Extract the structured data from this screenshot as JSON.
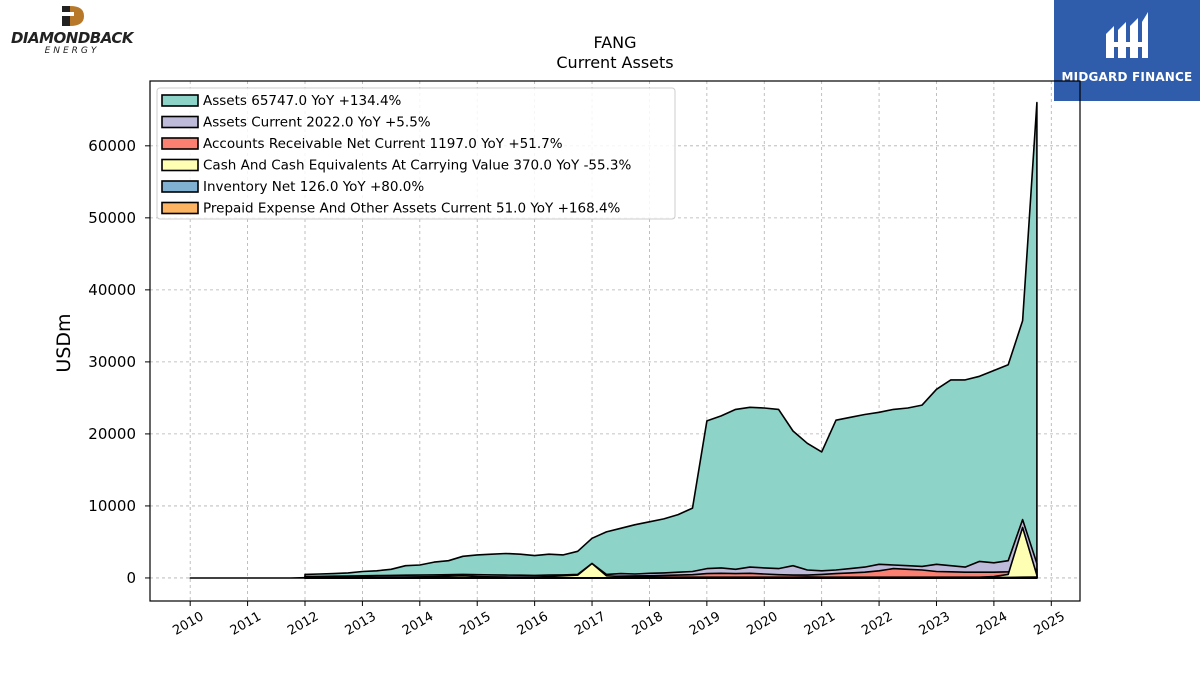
{
  "brand_left": {
    "name": "DIAMONDBACK",
    "sub": "ENERGY"
  },
  "brand_right": {
    "name": "MIDGARD FINANCE"
  },
  "chart_data": {
    "type": "area",
    "title": "FANG",
    "subtitle": "Current  Assets",
    "ylabel": "USDm",
    "xlabel": "",
    "xlim": [
      2009.3,
      2025.5
    ],
    "ylim": [
      -3200,
      69000
    ],
    "grid": true,
    "legend_position": "top-left",
    "x_ticks": [
      "2010",
      "2011",
      "2012",
      "2013",
      "2014",
      "2015",
      "2016",
      "2017",
      "2018",
      "2019",
      "2020",
      "2021",
      "2022",
      "2023",
      "2024",
      "2025"
    ],
    "y_ticks": [
      0,
      10000,
      20000,
      30000,
      40000,
      50000,
      60000
    ],
    "series": [
      {
        "name": "Assets",
        "legend": "Assets  65747.0 YoY +134.4%",
        "color": "#8dd3c7",
        "x": [
          2012.0,
          2012.25,
          2012.5,
          2012.75,
          2013.0,
          2013.25,
          2013.5,
          2013.75,
          2014.0,
          2014.25,
          2014.5,
          2014.75,
          2015.0,
          2015.25,
          2015.5,
          2015.75,
          2016.0,
          2016.25,
          2016.5,
          2016.75,
          2017.0,
          2017.25,
          2017.5,
          2017.75,
          2018.0,
          2018.25,
          2018.5,
          2018.75,
          2019.0,
          2019.25,
          2019.5,
          2019.75,
          2020.0,
          2020.25,
          2020.5,
          2020.75,
          2021.0,
          2021.25,
          2021.5,
          2021.75,
          2022.0,
          2022.25,
          2022.5,
          2022.75,
          2023.0,
          2023.25,
          2023.5,
          2023.75,
          2024.0,
          2024.25,
          2024.5,
          2024.75
        ],
        "values": [
          500,
          550,
          600,
          700,
          900,
          1000,
          1200,
          1700,
          1800,
          2200,
          2400,
          3000,
          3200,
          3300,
          3400,
          3300,
          3100,
          3300,
          3200,
          3700,
          5500,
          6400,
          6900,
          7400,
          7800,
          8200,
          8800,
          9700,
          21800,
          22500,
          23400,
          23700,
          23600,
          23400,
          20400,
          18700,
          17500,
          21900,
          22300,
          22700,
          23000,
          23400,
          23600,
          24000,
          26200,
          27500,
          27500,
          28000,
          28800,
          29600,
          35700,
          66000
        ]
      },
      {
        "name": "Assets Current",
        "legend": "Assets Current  2022.0 YoY +5.5%",
        "color": "#bebada",
        "x": [
          2012.0,
          2012.25,
          2012.5,
          2012.75,
          2013.0,
          2013.25,
          2013.5,
          2013.75,
          2014.0,
          2014.25,
          2014.5,
          2014.75,
          2015.0,
          2015.25,
          2015.5,
          2015.75,
          2016.0,
          2016.25,
          2016.5,
          2016.75,
          2017.0,
          2017.25,
          2017.5,
          2017.75,
          2018.0,
          2018.25,
          2018.5,
          2018.75,
          2019.0,
          2019.25,
          2019.5,
          2019.75,
          2020.0,
          2020.25,
          2020.5,
          2020.75,
          2021.0,
          2021.25,
          2021.5,
          2021.75,
          2022.0,
          2022.25,
          2022.5,
          2022.75,
          2023.0,
          2023.25,
          2023.5,
          2023.75,
          2024.0,
          2024.25,
          2024.5,
          2024.75
        ],
        "values": [
          200,
          220,
          240,
          260,
          300,
          320,
          350,
          380,
          400,
          420,
          450,
          500,
          450,
          420,
          400,
          380,
          350,
          400,
          420,
          500,
          2000,
          500,
          600,
          550,
          650,
          700,
          800,
          900,
          1300,
          1400,
          1200,
          1500,
          1400,
          1300,
          1700,
          1100,
          1000,
          1100,
          1300,
          1500,
          1900,
          1800,
          1700,
          1600,
          1900,
          1700,
          1500,
          2300,
          2100,
          2400,
          8100,
          2000
        ]
      },
      {
        "name": "Accounts Receivable Net Current",
        "legend": "Accounts Receivable Net Current  1197.0 YoY +51.7%",
        "color": "#fb8072",
        "x": [
          2012.0,
          2012.25,
          2012.5,
          2012.75,
          2013.0,
          2013.25,
          2013.5,
          2013.75,
          2014.0,
          2014.25,
          2014.5,
          2014.75,
          2015.0,
          2015.25,
          2015.5,
          2015.75,
          2016.0,
          2016.25,
          2016.5,
          2016.75,
          2017.0,
          2017.25,
          2017.5,
          2017.75,
          2018.0,
          2018.25,
          2018.5,
          2018.75,
          2019.0,
          2019.25,
          2019.5,
          2019.75,
          2020.0,
          2020.25,
          2020.5,
          2020.75,
          2021.0,
          2021.25,
          2021.5,
          2021.75,
          2022.0,
          2022.25,
          2022.5,
          2022.75,
          2023.0,
          2023.25,
          2023.5,
          2023.75,
          2024.0,
          2024.25,
          2024.5,
          2024.75
        ],
        "values": [
          50,
          55,
          60,
          65,
          80,
          90,
          100,
          110,
          120,
          130,
          140,
          150,
          130,
          120,
          110,
          100,
          100,
          110,
          120,
          150,
          200,
          220,
          250,
          280,
          300,
          350,
          400,
          450,
          600,
          650,
          600,
          650,
          550,
          450,
          400,
          400,
          500,
          600,
          700,
          800,
          1000,
          1300,
          1200,
          1100,
          900,
          850,
          800,
          800,
          800,
          850,
          1000,
          1197
        ]
      },
      {
        "name": "Cash And Cash Equivalents At Carrying Value",
        "legend": "Cash And Cash Equivalents At Carrying Value  370.0 YoY -55.3%",
        "color": "#ffffb3",
        "x": [
          2010.0,
          2010.25,
          2010.5,
          2010.75,
          2011.0,
          2011.25,
          2011.5,
          2011.75,
          2012.0,
          2012.25,
          2012.5,
          2012.75,
          2013.0,
          2013.25,
          2013.5,
          2013.75,
          2014.0,
          2014.25,
          2014.5,
          2014.75,
          2015.0,
          2015.25,
          2015.5,
          2015.75,
          2016.0,
          2016.25,
          2016.5,
          2016.75,
          2017.0,
          2017.25,
          2017.5,
          2017.75,
          2018.0,
          2018.25,
          2018.5,
          2018.75,
          2019.0,
          2019.25,
          2019.5,
          2019.75,
          2020.0,
          2020.25,
          2020.5,
          2020.75,
          2021.0,
          2021.25,
          2021.5,
          2021.75,
          2022.0,
          2022.25,
          2022.5,
          2022.75,
          2023.0,
          2023.25,
          2023.5,
          2023.75,
          2024.0,
          2024.25,
          2024.5,
          2024.75
        ],
        "values": [
          0,
          0,
          0,
          0,
          0,
          0,
          0,
          0,
          40,
          50,
          60,
          70,
          80,
          90,
          100,
          120,
          150,
          200,
          250,
          300,
          200,
          150,
          120,
          100,
          100,
          200,
          300,
          400,
          2000,
          300,
          200,
          150,
          100,
          100,
          100,
          100,
          100,
          100,
          100,
          100,
          100,
          100,
          100,
          150,
          100,
          100,
          100,
          100,
          100,
          100,
          100,
          100,
          100,
          100,
          100,
          100,
          200,
          500,
          7000,
          370
        ]
      },
      {
        "name": "Inventory Net",
        "legend": "Inventory Net  126.0 YoY +80.0%",
        "color": "#80b1d3",
        "x": [
          2012.0,
          2012.25,
          2012.5,
          2012.75,
          2013.0,
          2013.25,
          2013.5,
          2013.75,
          2014.0,
          2014.25,
          2014.5,
          2014.75,
          2015.0,
          2015.25,
          2015.5,
          2015.75,
          2016.0,
          2016.25,
          2016.5,
          2016.75,
          2017.0,
          2017.25,
          2017.5,
          2017.75,
          2018.0,
          2018.25,
          2018.5,
          2018.75,
          2019.0,
          2019.25,
          2019.5,
          2019.75,
          2020.0,
          2020.25,
          2020.5,
          2020.75,
          2021.0,
          2021.25,
          2021.5,
          2021.75,
          2022.0,
          2022.25,
          2022.5,
          2022.75,
          2023.0,
          2023.25,
          2023.5,
          2023.75,
          2024.0,
          2024.25,
          2024.5,
          2024.75
        ],
        "values": [
          5,
          5,
          5,
          5,
          8,
          8,
          8,
          8,
          10,
          10,
          12,
          12,
          15,
          15,
          15,
          15,
          15,
          15,
          15,
          20,
          20,
          20,
          25,
          25,
          30,
          30,
          35,
          35,
          40,
          40,
          45,
          45,
          50,
          50,
          55,
          55,
          60,
          60,
          60,
          60,
          60,
          60,
          65,
          65,
          70,
          70,
          70,
          70,
          70,
          70,
          100,
          126
        ]
      },
      {
        "name": "Prepaid Expense And Other Assets Current",
        "legend": "Prepaid Expense And Other Assets Current  51.0 YoY +168.4%",
        "color": "#fdb462",
        "x": [
          2012.0,
          2012.25,
          2012.5,
          2012.75,
          2013.0,
          2013.25,
          2013.5,
          2013.75,
          2014.0,
          2014.25,
          2014.5,
          2014.75,
          2015.0,
          2015.25,
          2015.5,
          2015.75,
          2016.0,
          2016.25,
          2016.5,
          2016.75,
          2017.0,
          2017.25,
          2017.5,
          2017.75,
          2018.0,
          2018.25,
          2018.5,
          2018.75,
          2019.0,
          2019.25,
          2019.5,
          2019.75,
          2020.0,
          2020.25,
          2020.5,
          2020.75,
          2021.0,
          2021.25,
          2021.5,
          2021.75,
          2022.0,
          2022.25,
          2022.5,
          2022.75,
          2023.0,
          2023.25,
          2023.5,
          2023.75,
          2024.0,
          2024.25,
          2024.5,
          2024.75
        ],
        "values": [
          3,
          3,
          4,
          4,
          5,
          5,
          5,
          6,
          6,
          7,
          7,
          8,
          8,
          9,
          9,
          10,
          10,
          10,
          11,
          11,
          12,
          12,
          13,
          13,
          14,
          14,
          15,
          15,
          16,
          16,
          17,
          17,
          18,
          18,
          19,
          19,
          20,
          20,
          20,
          21,
          21,
          22,
          22,
          23,
          23,
          24,
          24,
          25,
          25,
          19,
          30,
          51
        ]
      }
    ]
  }
}
